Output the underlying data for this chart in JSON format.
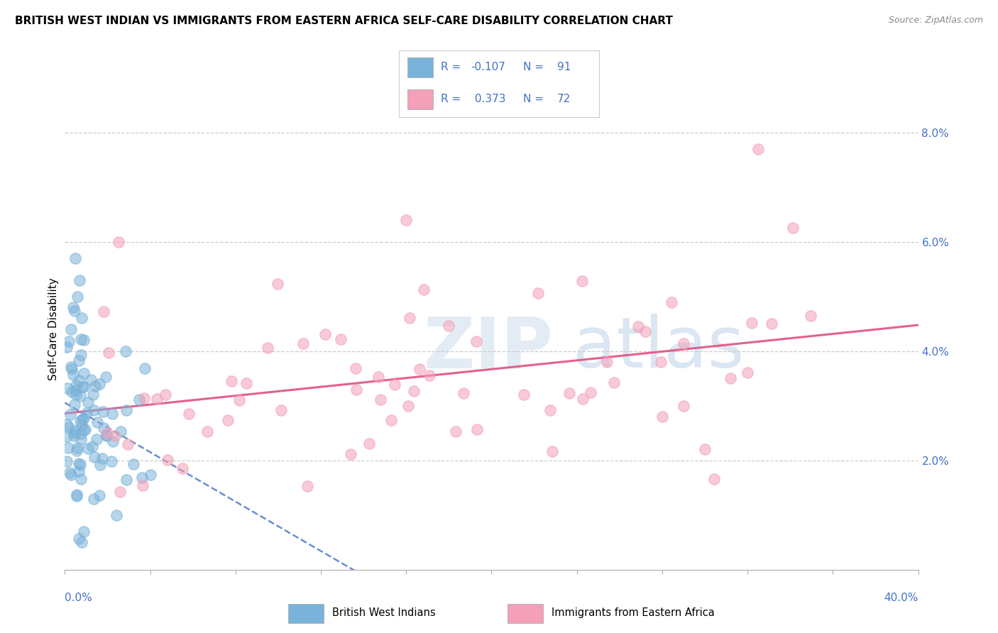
{
  "title": "BRITISH WEST INDIAN VS IMMIGRANTS FROM EASTERN AFRICA SELF-CARE DISABILITY CORRELATION CHART",
  "source": "Source: ZipAtlas.com",
  "ylabel_label": "Self-Care Disability",
  "ytick_labels": [
    "2.0%",
    "4.0%",
    "6.0%",
    "8.0%"
  ],
  "ytick_values": [
    0.02,
    0.04,
    0.06,
    0.08
  ],
  "xlim": [
    0.0,
    0.4
  ],
  "ylim": [
    0.0,
    0.088
  ],
  "blue_color": "#7ab3d9",
  "pink_color": "#f4a0b8",
  "trendline_blue_color": "#4472c4",
  "trendline_pink_color": "#e05080",
  "axis_color": "#4472c4",
  "label_color": "#4472c4",
  "figsize": [
    14.06,
    8.92
  ],
  "dpi": 100
}
